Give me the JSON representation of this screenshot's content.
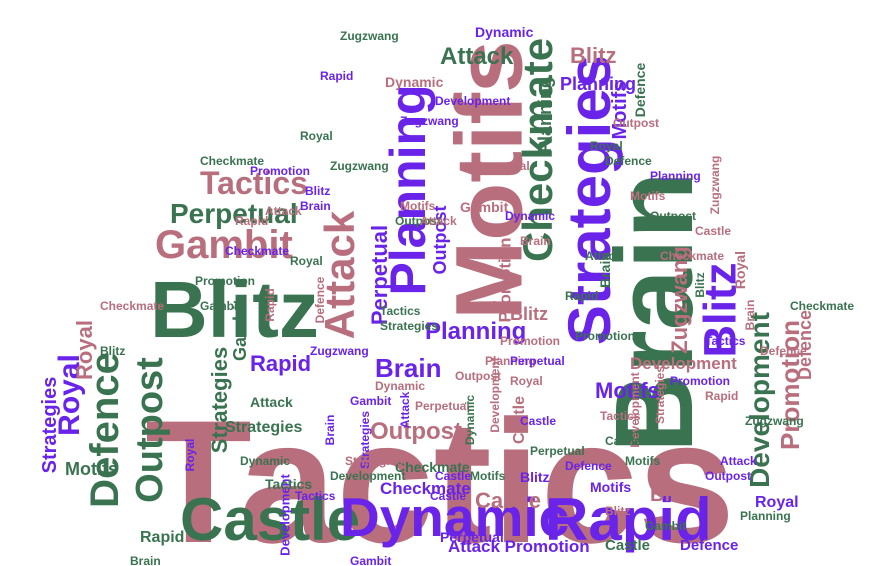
{
  "colors": {
    "rose": "#b86e7d",
    "green": "#3a7350",
    "violet": "#6a23e8"
  },
  "words": [
    {
      "text": "Tactics",
      "color": "rose"
    },
    {
      "text": "Brain",
      "color": "green"
    },
    {
      "text": "Motifs",
      "color": "rose"
    },
    {
      "text": "Strategies",
      "color": "violet"
    },
    {
      "text": "Planning",
      "color": "violet"
    },
    {
      "text": "Checkmate",
      "color": "green"
    },
    {
      "text": "Blitz",
      "color": "green"
    },
    {
      "text": "Castle",
      "color": "green"
    },
    {
      "text": "Dynamic",
      "color": "violet"
    },
    {
      "text": "Rapid",
      "color": "violet"
    },
    {
      "text": "Attack",
      "color": "rose"
    },
    {
      "text": "Gambit",
      "color": "rose"
    },
    {
      "text": "Defence",
      "color": "green"
    },
    {
      "text": "Outpost",
      "color": "green"
    },
    {
      "text": "Royal",
      "color": "violet"
    },
    {
      "text": "Development",
      "color": "green"
    },
    {
      "text": "Promotion",
      "color": "rose"
    },
    {
      "text": "Blitz",
      "color": "violet"
    },
    {
      "text": "Tactics",
      "color": "rose"
    },
    {
      "text": "Perpetual",
      "color": "green"
    },
    {
      "text": "Attack",
      "color": "green"
    },
    {
      "text": "Zugzwang",
      "color": "rose"
    },
    {
      "text": "Brain",
      "color": "violet"
    },
    {
      "text": "Planning",
      "color": "violet"
    },
    {
      "text": "Rapid",
      "color": "violet"
    },
    {
      "text": "Outpost",
      "color": "rose"
    },
    {
      "text": "Castle",
      "color": "rose"
    },
    {
      "text": "Blitz",
      "color": "rose"
    },
    {
      "text": "Motifs",
      "color": "violet"
    },
    {
      "text": "Strategies",
      "color": "green"
    },
    {
      "text": "Attack Promotion",
      "color": "violet"
    },
    {
      "text": "Castle",
      "color": "green"
    },
    {
      "text": "Defence",
      "color": "violet"
    },
    {
      "text": "Development",
      "color": "rose"
    },
    {
      "text": "Checkmate",
      "color": "violet"
    },
    {
      "text": "Gambit",
      "color": "green"
    },
    {
      "text": "Brain",
      "color": "rose"
    },
    {
      "text": "Motifs",
      "color": "green"
    },
    {
      "text": "Rapid",
      "color": "green"
    },
    {
      "text": "Royal",
      "color": "rose"
    },
    {
      "text": "Strategies",
      "color": "violet"
    },
    {
      "text": "Defence",
      "color": "rose"
    },
    {
      "text": "Perpetual",
      "color": "violet"
    },
    {
      "text": "Promotion",
      "color": "rose"
    },
    {
      "text": "Royal",
      "color": "violet"
    },
    {
      "text": "Motifs",
      "color": "violet"
    },
    {
      "text": "Dynamic",
      "color": "rose"
    },
    {
      "text": "Blitz",
      "color": "rose"
    },
    {
      "text": "Planning",
      "color": "green"
    },
    {
      "text": "Development",
      "color": "violet"
    },
    {
      "text": "Zugzwang",
      "color": "green"
    },
    {
      "text": "Outpost",
      "color": "violet"
    },
    {
      "text": "Dynamic",
      "color": "violet"
    },
    {
      "text": "Outpost",
      "color": "green"
    },
    {
      "text": "Defence",
      "color": "green"
    },
    {
      "text": "Attack",
      "color": "violet"
    },
    {
      "text": "Motifs",
      "color": "violet"
    },
    {
      "text": "Royal",
      "color": "violet"
    },
    {
      "text": "Castle",
      "color": "rose"
    },
    {
      "text": "Perpetual",
      "color": "violet"
    },
    {
      "text": "Blitz",
      "color": "violet"
    },
    {
      "text": "Checkmate",
      "color": "green"
    },
    {
      "text": "Tactics",
      "color": "green"
    },
    {
      "text": "Brain",
      "color": "rose"
    },
    {
      "text": "Promotion",
      "color": "green"
    },
    {
      "text": "Attack",
      "color": "green"
    },
    {
      "text": "Strategies",
      "color": "green"
    },
    {
      "text": "Gambit",
      "color": "violet"
    },
    {
      "text": "Rapid",
      "color": "rose"
    },
    {
      "text": "Development",
      "color": "rose"
    },
    {
      "text": "Checkmate",
      "color": "green"
    },
    {
      "text": "Brain",
      "color": "violet"
    },
    {
      "text": "Perpetual",
      "color": "rose"
    },
    {
      "text": "Zugzwang",
      "color": "violet"
    },
    {
      "text": "Royal",
      "color": "rose"
    },
    {
      "text": "Castle",
      "color": "green"
    },
    {
      "text": "Motifs",
      "color": "green"
    },
    {
      "text": "Planning",
      "color": "violet"
    },
    {
      "text": "Tactics",
      "color": "rose"
    },
    {
      "text": "Defence",
      "color": "rose"
    },
    {
      "text": "Dynamic",
      "color": "green"
    },
    {
      "text": "Gambit",
      "color": "rose"
    },
    {
      "text": "Promotion",
      "color": "rose"
    },
    {
      "text": "Rapid",
      "color": "violet"
    },
    {
      "text": "Brain",
      "color": "green"
    },
    {
      "text": "Blitz",
      "color": "green"
    },
    {
      "text": "Checkmate",
      "color": "green"
    },
    {
      "text": "Outpost",
      "color": "rose"
    },
    {
      "text": "Planning",
      "color": "rose"
    },
    {
      "text": "Royal",
      "color": "green"
    },
    {
      "text": "Attack",
      "color": "violet"
    },
    {
      "text": "Zugzwang",
      "color": "green"
    },
    {
      "text": "Development",
      "color": "green"
    },
    {
      "text": "Strategies",
      "color": "violet"
    },
    {
      "text": "Motifs",
      "color": "rose"
    },
    {
      "text": "Castle",
      "color": "violet"
    },
    {
      "text": "Tactics",
      "color": "violet"
    },
    {
      "text": "Blitz",
      "color": "rose"
    },
    {
      "text": "Perpetual",
      "color": "green"
    },
    {
      "text": "Gambit",
      "color": "green"
    },
    {
      "text": "Defence",
      "color": "violet"
    },
    {
      "text": "Dynamic",
      "color": "rose"
    },
    {
      "text": "Brain",
      "color": "rose"
    },
    {
      "text": "Rapid",
      "color": "rose"
    },
    {
      "text": "Promotion",
      "color": "violet"
    },
    {
      "text": "Strategies",
      "color": "rose"
    },
    {
      "text": "Checkmate",
      "color": "violet"
    },
    {
      "text": "Attack",
      "color": "rose"
    },
    {
      "text": "Zugzwang",
      "color": "rose"
    },
    {
      "text": "Royal",
      "color": "green"
    },
    {
      "text": "Planning",
      "color": "green"
    },
    {
      "text": "Castle",
      "color": "violet"
    },
    {
      "text": "Outpost",
      "color": "violet"
    },
    {
      "text": "Gambit",
      "color": "green"
    },
    {
      "text": "Development",
      "color": "rose"
    },
    {
      "text": "Motifs",
      "color": "rose"
    },
    {
      "text": "Blitz",
      "color": "green"
    },
    {
      "text": "Tactics",
      "color": "violet"
    },
    {
      "text": "Defence",
      "color": "rose"
    },
    {
      "text": "Perpetual",
      "color": "rose"
    },
    {
      "text": "Rapid",
      "color": "green"
    },
    {
      "text": "Brain",
      "color": "violet"
    },
    {
      "text": "Checkmate",
      "color": "rose"
    },
    {
      "text": "Promotion",
      "color": "green"
    },
    {
      "text": "Dynamic",
      "color": "green"
    },
    {
      "text": "Attack",
      "color": "green"
    },
    {
      "text": "Strategies",
      "color": "rose"
    },
    {
      "text": "Castle",
      "color": "rose"
    },
    {
      "text": "Royal",
      "color": "rose"
    },
    {
      "text": "Zugzwang",
      "color": "green"
    },
    {
      "text": "Outpost",
      "color": "green"
    },
    {
      "text": "Planning",
      "color": "rose"
    },
    {
      "text": "Gambit",
      "color": "violet"
    },
    {
      "text": "Blitz",
      "color": "violet"
    },
    {
      "text": "Motifs",
      "color": "green"
    },
    {
      "text": "Development",
      "color": "violet"
    },
    {
      "text": "Tactics",
      "color": "green"
    },
    {
      "text": "Defence",
      "color": "green"
    },
    {
      "text": "Perpetual",
      "color": "violet"
    },
    {
      "text": "Rapid",
      "color": "rose"
    },
    {
      "text": "Brain",
      "color": "green"
    },
    {
      "text": "Checkmate",
      "color": "rose"
    },
    {
      "text": "Promotion",
      "color": "violet"
    },
    {
      "text": "Dynamic",
      "color": "violet"
    },
    {
      "text": "Attack",
      "color": "rose"
    },
    {
      "text": "Strategies",
      "color": "green"
    },
    {
      "text": "Castle",
      "color": "violet"
    },
    {
      "text": "Royal",
      "color": "green"
    },
    {
      "text": "Zugzwang",
      "color": "violet"
    },
    {
      "text": "Outpost",
      "color": "rose"
    },
    {
      "text": "Planning",
      "color": "violet"
    }
  ]
}
